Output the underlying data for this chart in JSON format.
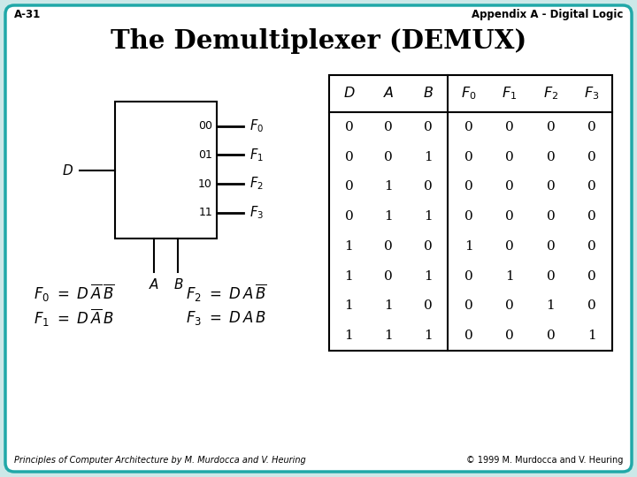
{
  "title": "The Demultiplexer (DEMUX)",
  "header_left": "A-31",
  "header_right": "Appendix A - Digital Logic",
  "footer_left": "Principles of Computer Architecture by M. Murdocca and V. Heuring",
  "footer_right": "© 1999 M. Murdocca and V. Heuring",
  "bg_color": "#cce8e8",
  "border_color": "#20a8a8",
  "truth_table": {
    "rows": [
      [
        0,
        0,
        0,
        0,
        0,
        0,
        0
      ],
      [
        0,
        0,
        1,
        0,
        0,
        0,
        0
      ],
      [
        0,
        1,
        0,
        0,
        0,
        0,
        0
      ],
      [
        0,
        1,
        1,
        0,
        0,
        0,
        0
      ],
      [
        1,
        0,
        0,
        1,
        0,
        0,
        0
      ],
      [
        1,
        0,
        1,
        0,
        1,
        0,
        0
      ],
      [
        1,
        1,
        0,
        0,
        0,
        1,
        0
      ],
      [
        1,
        1,
        1,
        0,
        0,
        0,
        1
      ]
    ]
  }
}
